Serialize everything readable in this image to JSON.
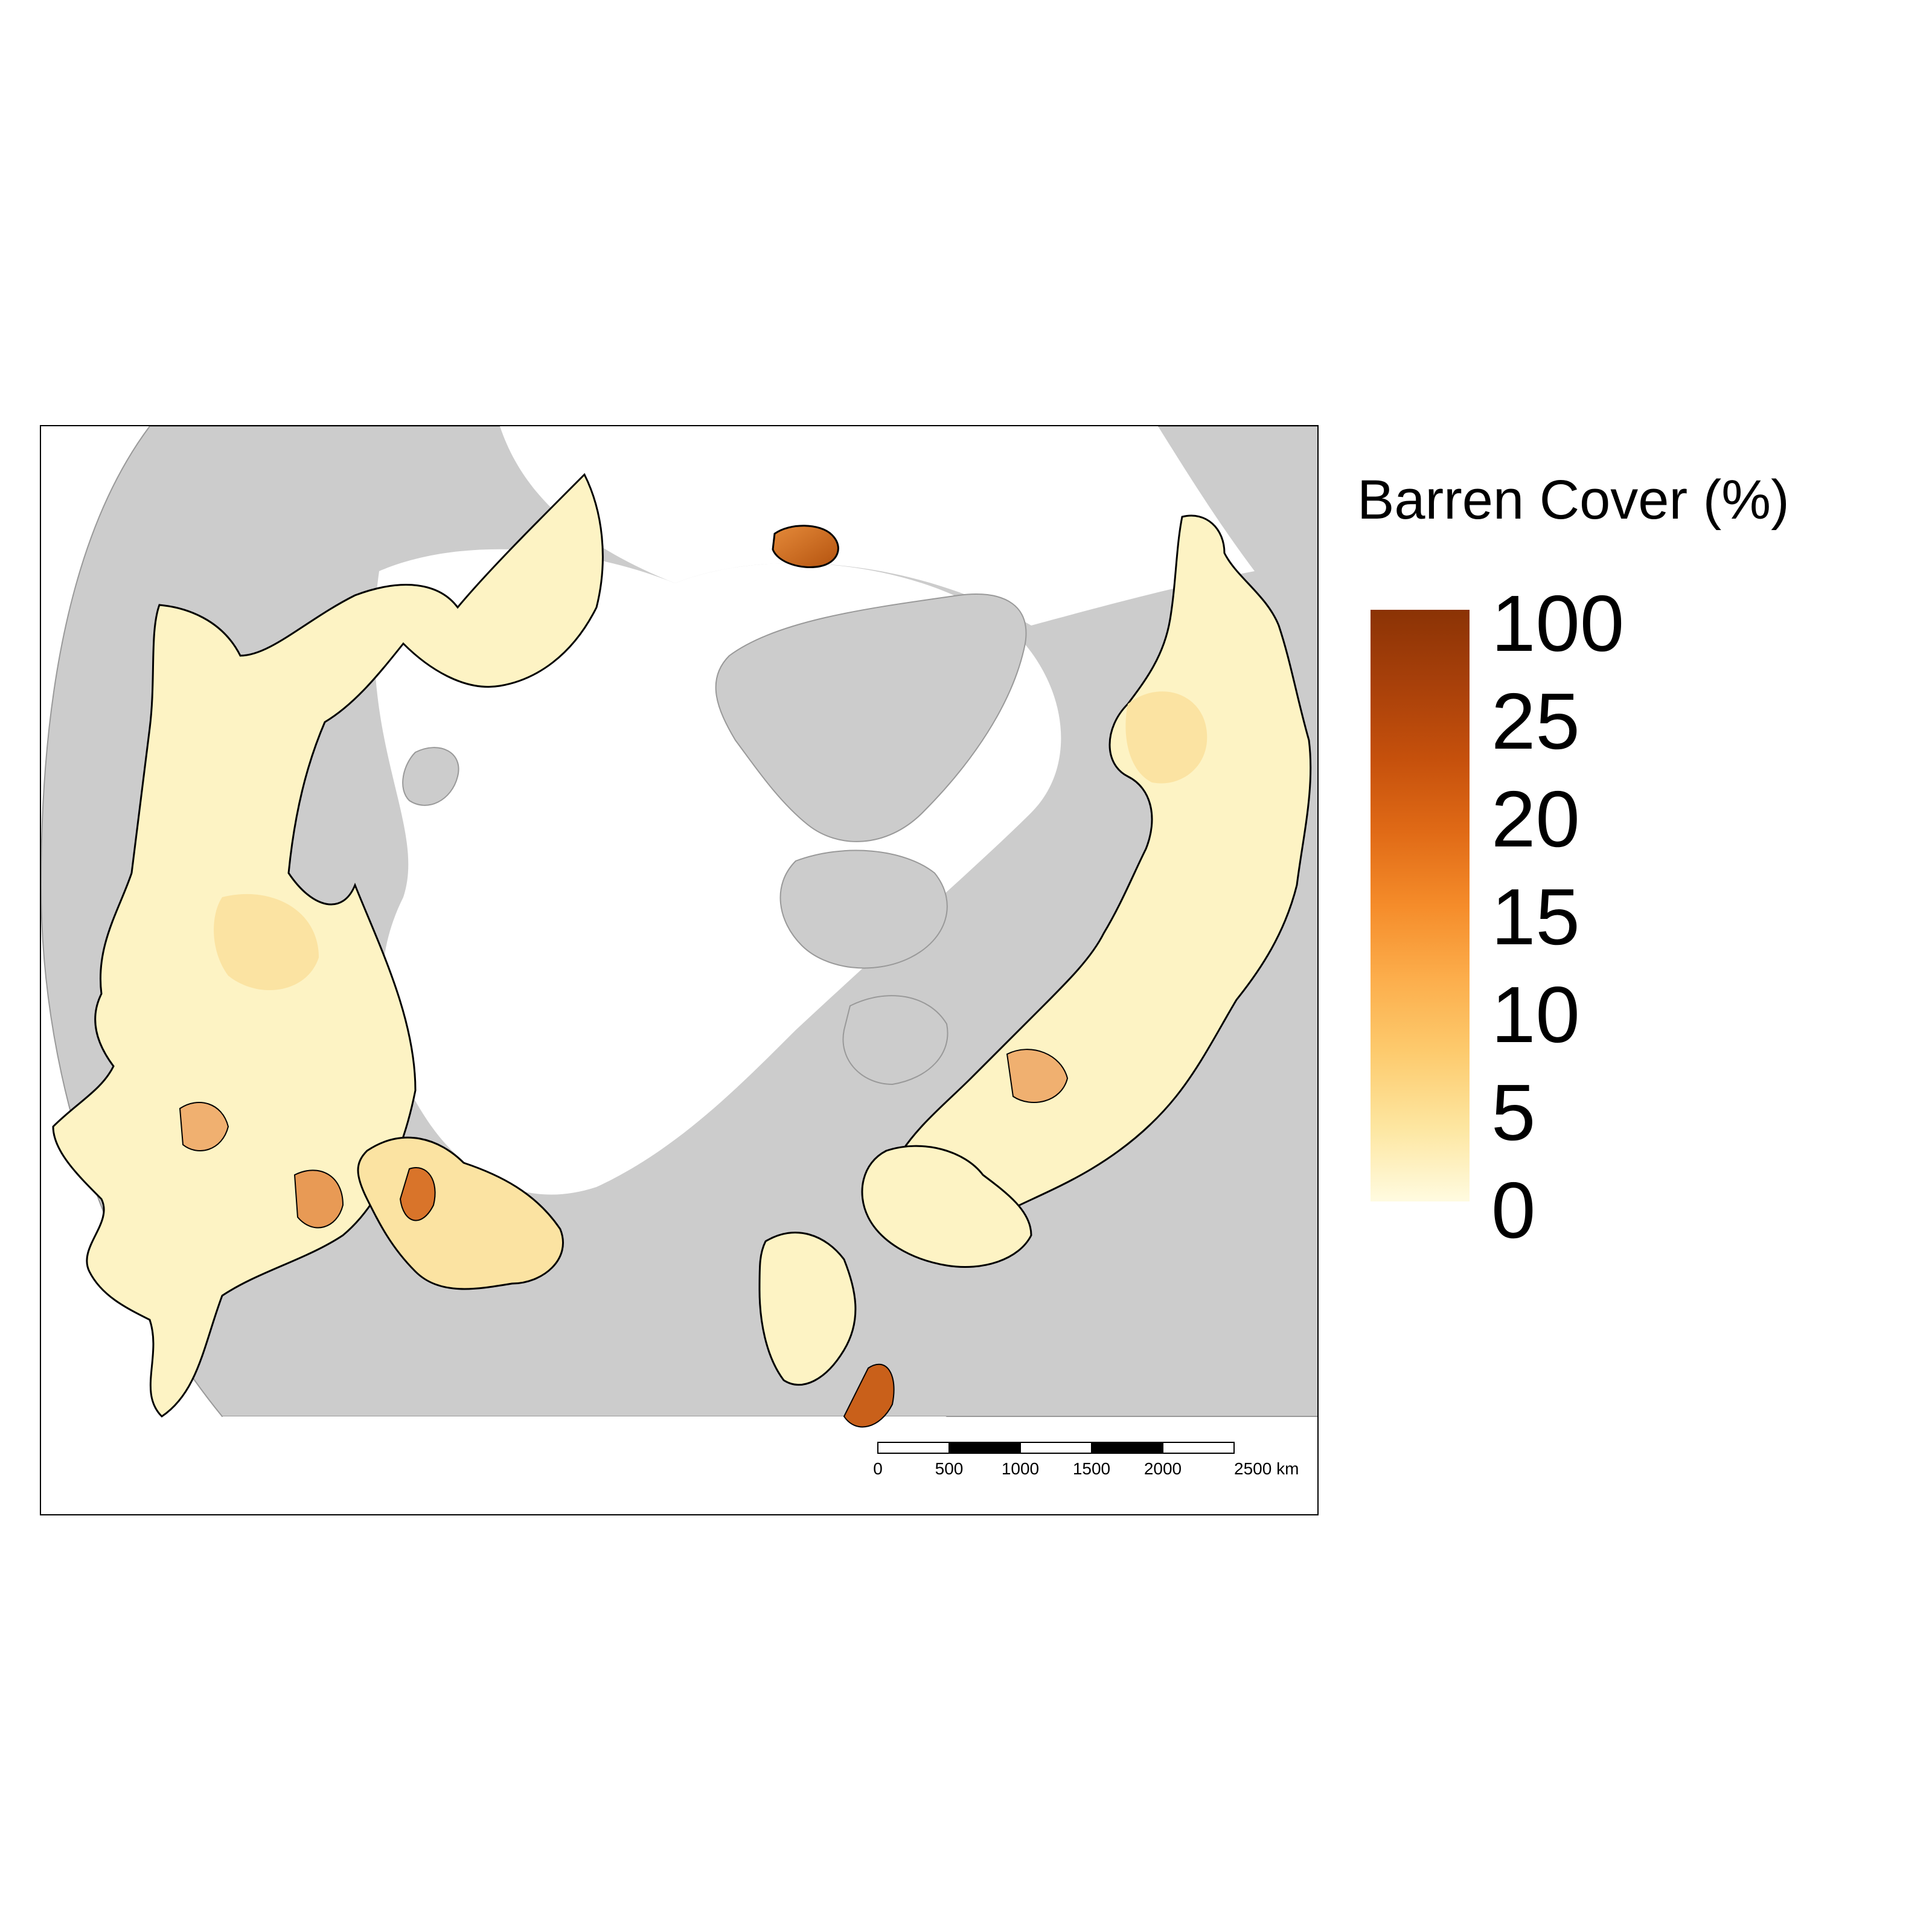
{
  "legend": {
    "title": "Barren Cover (%)",
    "ticks": [
      "100",
      "25",
      "20",
      "15",
      "10",
      "5",
      "0"
    ],
    "gradient_colors": [
      "#fffbe0",
      "#fde6a0",
      "#fdcb6e",
      "#fcae4c",
      "#f58c2a",
      "#e06a16",
      "#c5500c",
      "#a8400a",
      "#8b3305"
    ]
  },
  "scale_bar": {
    "labels": [
      "0",
      "500",
      "1000",
      "1500",
      "2000",
      "2500 km"
    ]
  },
  "colors": {
    "land_other": "#cccccc",
    "land_outline": "#999999",
    "tundra_low": "#fdf3c4",
    "tundra_mid": "#fbe3a2",
    "boundary": "#000000",
    "ocean": "#ffffff"
  }
}
